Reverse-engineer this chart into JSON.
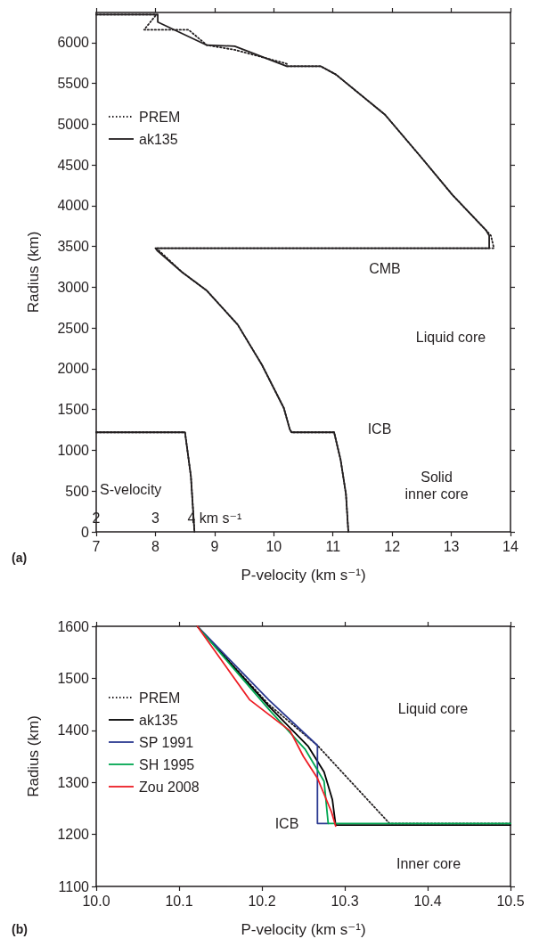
{
  "chart_data": [
    {
      "type": "line",
      "title": "(a)",
      "xlabel": "P-velocity (km s⁻¹)",
      "ylabel": "Radius (km)",
      "x2label": "S-velocity",
      "xlim": [
        7,
        14
      ],
      "xticks": [
        7,
        8,
        9,
        10,
        11,
        12,
        13,
        14
      ],
      "x2lim": [
        2,
        9
      ],
      "x2ticks": [
        2,
        3,
        {
          "value": 4,
          "label": "4 km s⁻¹"
        }
      ],
      "ylim": [
        0,
        6371
      ],
      "yticks": [
        0,
        500,
        1000,
        1500,
        2000,
        2500,
        3000,
        3500,
        4000,
        4500,
        5000,
        5500,
        6000
      ],
      "legend": "left",
      "marker": "none",
      "grid": false,
      "series": [
        {
          "name": "PREM",
          "color": "#231f20",
          "line_style": "dotted",
          "x": [
            7,
            8.04,
            8.0,
            7.81,
            8.56,
            8.87,
            9.34,
            10.22,
            10.22,
            10.79,
            11.05,
            11.88,
            12.5,
            13.02,
            13.59,
            13.67,
            13.72,
            8.0,
            8.06,
            8.45,
            8.87,
            9.39,
            9.8,
            10.17,
            10.27,
            10.3,
            11.02,
            11.13,
            11.22,
            11.26
          ],
          "values": [
            6346,
            6346,
            6330,
            6159,
            6159,
            5970,
            5913,
            5742,
            5712,
            5712,
            5610,
            5117,
            4587,
            4132,
            3697,
            3633,
            3480,
            3480,
            3450,
            3186,
            2958,
            2542,
            2049,
            1519,
            1260,
            1221,
            1221,
            882,
            462,
            0
          ]
        },
        {
          "name": "ak135",
          "color": "#231f20",
          "line_style": "solid",
          "x": [
            7,
            8.04,
            8.04,
            8.87,
            9.34,
            10.22,
            10.79,
            11.05,
            11.88,
            12.5,
            13.02,
            13.59,
            13.64,
            13.64,
            8.0,
            8.03,
            8.45,
            8.87,
            9.39,
            9.8,
            10.17,
            10.27,
            10.3,
            11.02,
            11.13,
            11.22,
            11.26
          ],
          "values": [
            6346,
            6346,
            6254,
            5970,
            5958,
            5712,
            5712,
            5610,
            5117,
            4587,
            4132,
            3697,
            3633,
            3480,
            3480,
            3450,
            3186,
            2958,
            2542,
            2049,
            1519,
            1260,
            1221,
            1221,
            882,
            462,
            0
          ]
        },
        {
          "color": "#231f20",
          "line_style": "dotted",
          "axis": "x2",
          "x": [
            2,
            3.5,
            3.6,
            3.66
          ],
          "values": [
            1221,
            1221,
            681,
            0
          ]
        },
        {
          "color": "#231f20",
          "line_style": "solid",
          "axis": "x2",
          "x": [
            2,
            3.5,
            3.6,
            3.66
          ],
          "values": [
            1221,
            1221,
            681,
            0
          ]
        }
      ],
      "annotations": [
        "CMB",
        "Liquid core",
        "ICB",
        "Solid\ninner core"
      ]
    },
    {
      "type": "line",
      "title": "(b)",
      "xlabel": "P-velocity (km s⁻¹)",
      "ylabel": "Radius (km)",
      "xlim": [
        10.0,
        10.5
      ],
      "xticks": [
        {
          "value": 10,
          "label": "10.0"
        },
        10.1,
        10.2,
        10.3,
        10.4,
        10.5
      ],
      "ylim": [
        1100,
        1600
      ],
      "yticks": [
        1100,
        1200,
        1300,
        1400,
        1500,
        1600
      ],
      "legend": "left",
      "marker": "none",
      "grid": false,
      "series": [
        {
          "name": "PREM",
          "color": "#231f20",
          "line_style": "dotted",
          "x": [
            10.122,
            10.208,
            10.267,
            10.354,
            10.5
          ],
          "values": [
            1600,
            1450,
            1371,
            1221,
            1221
          ]
        },
        {
          "name": "ak135",
          "color": "#000000",
          "line_style": "solid",
          "x": [
            10.122,
            10.208,
            10.256,
            10.275,
            10.285,
            10.289,
            10.5
          ],
          "values": [
            1600,
            1447,
            1369,
            1320,
            1267,
            1218,
            1218
          ]
        },
        {
          "name": "SP 1991",
          "color": "#2b3990",
          "line_style": "solid",
          "x": [
            10.122,
            10.208,
            10.267,
            10.267,
            10.28
          ],
          "values": [
            1600,
            1459,
            1371,
            1221,
            1221
          ]
        },
        {
          "name": "SH 1995",
          "color": "#00a651",
          "line_style": "solid",
          "x": [
            10.122,
            10.208,
            10.252,
            10.275,
            10.279,
            10.28,
            10.5
          ],
          "values": [
            1600,
            1441,
            1364,
            1302,
            1237,
            1221,
            1221
          ]
        },
        {
          "name": "Zou 2008",
          "color": "#ed1c24",
          "line_style": "solid",
          "x": [
            10.122,
            10.185,
            10.234,
            10.25,
            10.267,
            10.284,
            10.289
          ],
          "values": [
            1600,
            1459,
            1399,
            1350,
            1308,
            1243,
            1216
          ]
        }
      ],
      "annotations": [
        "Liquid core",
        "ICB",
        "Inner core"
      ]
    }
  ]
}
